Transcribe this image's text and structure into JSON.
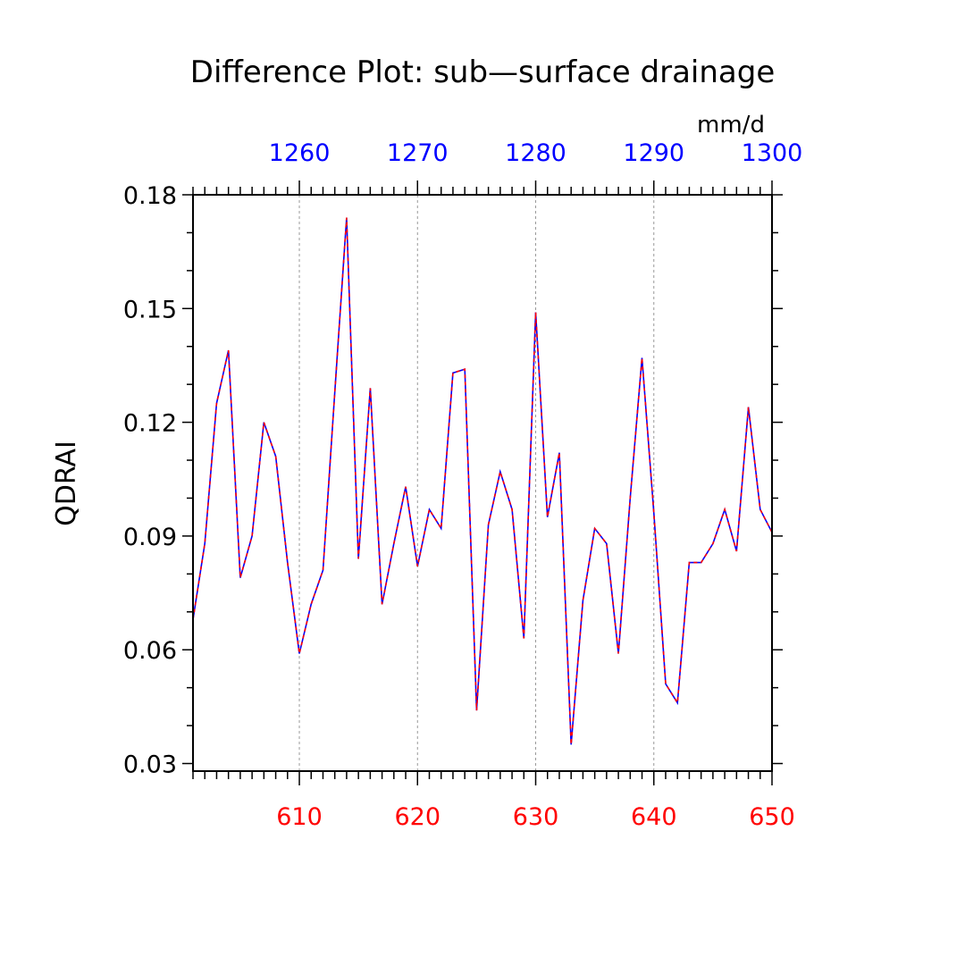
{
  "colors": {
    "bottom_axis": "#ff0000",
    "top_axis": "#0000ff",
    "line_primary": "#0000ff",
    "line_overlay": "#ff0000",
    "frame": "#000000",
    "grid": "#999999"
  },
  "chart_data": {
    "type": "line",
    "title": "Difference Plot: sub—surface drainage",
    "units": "mm/d",
    "ylabel": "QDRAI",
    "xlabel": "",
    "ylim": [
      0.028,
      0.18
    ],
    "xlim": [
      601,
      650
    ],
    "yticks": [
      0.03,
      0.06,
      0.09,
      0.12,
      0.15,
      0.18
    ],
    "ytick_labels": [
      "0.03",
      "0.06",
      "0.09",
      "0.12",
      "0.15",
      "0.18"
    ],
    "xticks_bottom": [
      610,
      620,
      630,
      640,
      650
    ],
    "xtick_labels_bottom": [
      "610",
      "620",
      "630",
      "640",
      "650"
    ],
    "xticks_top": [
      1260,
      1270,
      1280,
      1290,
      1300
    ],
    "xtick_labels_top": [
      "1260",
      "1270",
      "1280",
      "1290",
      "1300"
    ],
    "top_axis_offset": 650,
    "grid": "vertical dashed at major x ticks",
    "series": [
      {
        "name": "QDRAI (blue)",
        "color": "#0000ff",
        "style": "solid",
        "x": [
          601,
          602,
          603,
          604,
          605,
          606,
          607,
          608,
          609,
          610,
          611,
          612,
          613,
          614,
          615,
          616,
          617,
          618,
          619,
          620,
          621,
          622,
          623,
          624,
          625,
          626,
          627,
          628,
          629,
          630,
          631,
          632,
          633,
          634,
          635,
          636,
          637,
          638,
          639,
          640,
          641,
          642,
          643,
          644,
          645,
          646,
          647,
          648,
          649,
          650
        ],
        "values": [
          0.068,
          0.088,
          0.125,
          0.139,
          0.079,
          0.09,
          0.12,
          0.111,
          0.083,
          0.059,
          0.072,
          0.081,
          0.128,
          0.174,
          0.084,
          0.129,
          0.072,
          0.088,
          0.103,
          0.082,
          0.097,
          0.092,
          0.133,
          0.134,
          0.044,
          0.093,
          0.107,
          0.097,
          0.063,
          0.149,
          0.095,
          0.112,
          0.035,
          0.073,
          0.092,
          0.088,
          0.059,
          0.1,
          0.137,
          0.096,
          0.051,
          0.046,
          0.083,
          0.083,
          0.088,
          0.097,
          0.086,
          0.124,
          0.097,
          0.091
        ]
      },
      {
        "name": "QDRAI (red overlay)",
        "color": "#ff0000",
        "style": "dashed",
        "x": [
          601,
          602,
          603,
          604,
          605,
          606,
          607,
          608,
          609,
          610,
          611,
          612,
          613,
          614,
          615,
          616,
          617,
          618,
          619,
          620,
          621,
          622,
          623,
          624,
          625,
          626,
          627,
          628,
          629,
          630,
          631,
          632,
          633,
          634,
          635,
          636,
          637,
          638,
          639,
          640,
          641,
          642,
          643,
          644,
          645,
          646,
          647,
          648,
          649,
          650
        ],
        "values": [
          0.068,
          0.088,
          0.125,
          0.139,
          0.079,
          0.09,
          0.12,
          0.111,
          0.083,
          0.059,
          0.072,
          0.081,
          0.128,
          0.174,
          0.084,
          0.129,
          0.072,
          0.088,
          0.103,
          0.082,
          0.097,
          0.092,
          0.133,
          0.134,
          0.044,
          0.093,
          0.107,
          0.097,
          0.063,
          0.149,
          0.095,
          0.112,
          0.035,
          0.073,
          0.092,
          0.088,
          0.059,
          0.1,
          0.137,
          0.096,
          0.051,
          0.046,
          0.083,
          0.083,
          0.088,
          0.097,
          0.086,
          0.124,
          0.097,
          0.091
        ]
      }
    ]
  }
}
